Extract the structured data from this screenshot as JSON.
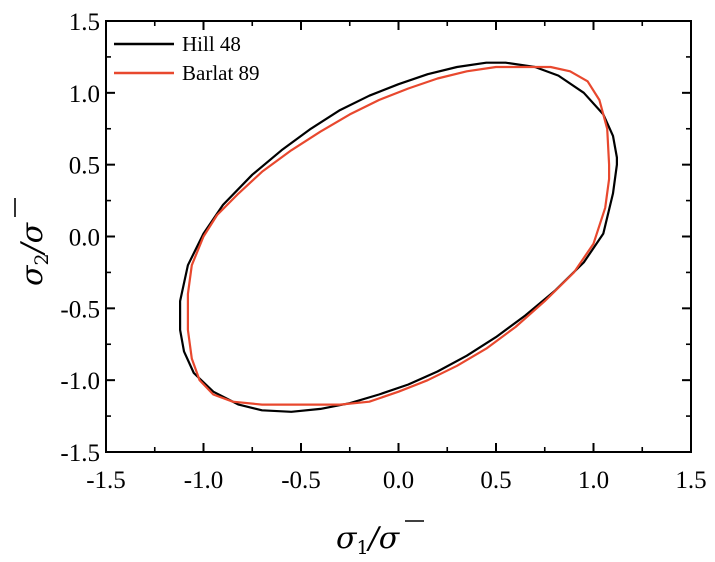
{
  "chart_data": {
    "type": "line",
    "title": "",
    "xlabel": {
      "symbol": "σ",
      "subscript": "1",
      "denominator": "σ"
    },
    "ylabel": {
      "symbol": "σ",
      "subscript": "2",
      "denominator": "σ"
    },
    "xlim": [
      -1.5,
      1.5
    ],
    "ylim": [
      -1.5,
      1.5
    ],
    "xticks": [
      "-1.5",
      "-1.0",
      "-0.5",
      "0.0",
      "0.5",
      "1.0",
      "1.5"
    ],
    "yticks": [
      "-1.5",
      "-1.0",
      "-0.5",
      "0.0",
      "0.5",
      "1.0",
      "1.5"
    ],
    "grid": false,
    "legend_position": "top-left",
    "series": [
      {
        "name": "Hill 48",
        "color": "#000000",
        "x": [
          1.12,
          1.1,
          1.05,
          0.95,
          0.82,
          0.7,
          0.55,
          0.45,
          0.3,
          0.15,
          0.0,
          -0.15,
          -0.3,
          -0.45,
          -0.6,
          -0.75,
          -0.9,
          -1.0,
          -1.08,
          -1.12,
          -1.12,
          -1.1,
          -1.05,
          -0.95,
          -0.82,
          -0.7,
          -0.55,
          -0.4,
          -0.25,
          -0.1,
          0.05,
          0.2,
          0.35,
          0.5,
          0.65,
          0.8,
          0.95,
          1.05,
          1.1,
          1.12
        ],
        "y": [
          0.55,
          0.7,
          0.85,
          1.0,
          1.12,
          1.18,
          1.21,
          1.21,
          1.18,
          1.13,
          1.06,
          0.98,
          0.88,
          0.75,
          0.6,
          0.43,
          0.22,
          0.02,
          -0.2,
          -0.45,
          -0.65,
          -0.8,
          -0.95,
          -1.08,
          -1.17,
          -1.21,
          -1.22,
          -1.2,
          -1.16,
          -1.1,
          -1.03,
          -0.94,
          -0.83,
          -0.7,
          -0.55,
          -0.38,
          -0.18,
          0.02,
          0.3,
          0.5
        ]
      },
      {
        "name": "Barlat 89",
        "color": "#e8482e",
        "x": [
          1.08,
          1.07,
          1.03,
          0.97,
          0.88,
          0.78,
          0.65,
          0.5,
          0.35,
          0.2,
          0.05,
          -0.1,
          -0.25,
          -0.4,
          -0.55,
          -0.7,
          -0.82,
          -0.93,
          -1.0,
          -1.06,
          -1.08,
          -1.08,
          -1.06,
          -1.02,
          -0.95,
          -0.85,
          -0.7,
          -0.5,
          -0.3,
          -0.15,
          0.0,
          0.15,
          0.3,
          0.45,
          0.6,
          0.75,
          0.9,
          1.0,
          1.06,
          1.08
        ],
        "y": [
          0.5,
          0.75,
          0.95,
          1.08,
          1.15,
          1.18,
          1.18,
          1.18,
          1.15,
          1.1,
          1.03,
          0.95,
          0.85,
          0.73,
          0.6,
          0.45,
          0.3,
          0.15,
          0.0,
          -0.2,
          -0.4,
          -0.65,
          -0.85,
          -1.0,
          -1.1,
          -1.15,
          -1.17,
          -1.17,
          -1.17,
          -1.15,
          -1.08,
          -1.0,
          -0.9,
          -0.78,
          -0.63,
          -0.45,
          -0.25,
          -0.05,
          0.2,
          0.4
        ]
      }
    ]
  }
}
